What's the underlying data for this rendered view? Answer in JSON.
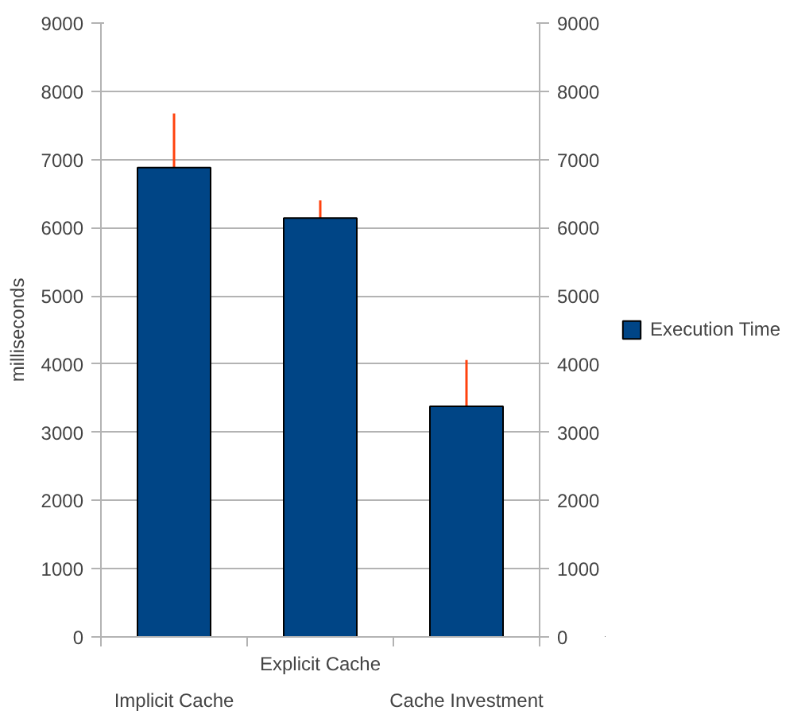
{
  "chart_data": {
    "type": "bar",
    "ylabel": "milliseconds",
    "categories": [
      "Implicit Cache",
      "Explicit Cache",
      "Cache Investment"
    ],
    "series": [
      {
        "name": "Execution Time",
        "color": "#004586",
        "values": [
          6880,
          6140,
          3380
        ],
        "errors": [
          795,
          260,
          680
        ]
      }
    ],
    "ylim": [
      0,
      9000
    ],
    "yticks": [
      0,
      1000,
      2000,
      3000,
      4000,
      5000,
      6000,
      7000,
      8000,
      9000
    ],
    "y2lim": [
      0,
      9000
    ],
    "y2ticks": [
      0,
      1000,
      2000,
      3000,
      4000,
      5000,
      6000,
      7000,
      8000,
      9000
    ],
    "grid": "y",
    "legend": "right"
  }
}
